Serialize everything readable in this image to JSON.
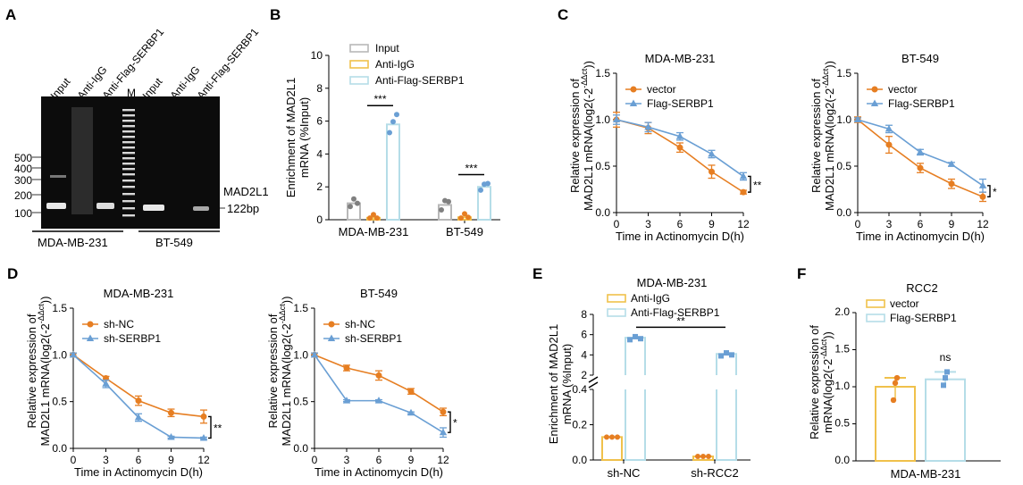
{
  "colors": {
    "orange": "#e67e22",
    "blue": "#6a9fd4",
    "lightblue": "#b5dde8",
    "gray": "#b8b8b8",
    "yellow": "#f0c14b",
    "darkgray": "#808080"
  },
  "panel_a": {
    "letter": "A",
    "lanes": [
      "Input",
      "Anti-IgG",
      "Anti-Flag-SERBP1",
      "M",
      "Input",
      "Anti-IgG",
      "Anti-Flag-SERBP1"
    ],
    "ladder_labels": [
      "500",
      "400",
      "300",
      "200",
      "100"
    ],
    "band_label_line1": "MAD2L1",
    "band_label_line2": "122bp",
    "groups": [
      "MDA-MB-231",
      "BT-549"
    ]
  },
  "chart_data": [
    {
      "id": "B",
      "type": "bar",
      "panel": "B",
      "ylabel": "Enrichment of MAD2L1 mRNA (%Input)",
      "ylabel_line1": "Enrichment of MAD2L1",
      "ylabel_line2": "mRNA (%Input)",
      "ylim": [
        0,
        10
      ],
      "yticks": [
        "0",
        "2",
        "4",
        "6",
        "8",
        "10"
      ],
      "categories": [
        "MDA-MB-231",
        "BT-549"
      ],
      "series": [
        {
          "name": "Input",
          "values": [
            1.0,
            0.9
          ],
          "points": [
            [
              0.8,
              1.1,
              1.0
            ],
            [
              0.6,
              1.0,
              1.1
            ]
          ]
        },
        {
          "name": "Anti-IgG",
          "values": [
            0.12,
            0.15
          ],
          "points": [
            [
              0.1,
              0.15,
              0.1
            ],
            [
              0.1,
              0.2,
              0.15
            ]
          ]
        },
        {
          "name": "Anti-Flag-SERBP1",
          "values": [
            5.8,
            2.0
          ],
          "points": [
            [
              5.3,
              5.8,
              6.4
            ],
            [
              1.8,
              2.0,
              2.2
            ]
          ]
        }
      ],
      "significance": [
        "***",
        "***"
      ]
    },
    {
      "id": "C1",
      "type": "line",
      "panel": "C",
      "title": "MDA-MB-231",
      "xlabel": "Time in Actinomycin D(h)",
      "ylabel_line1": "Relative expression of",
      "ylabel_line2": "MAD2L1 mRNA(log2(-2",
      "ylabel_sup": "-ΔΔct",
      "ylabel_close": "))",
      "x": [
        0,
        3,
        6,
        9,
        12
      ],
      "xticks": [
        "0",
        "3",
        "6",
        "9",
        "12"
      ],
      "ylim": [
        0,
        1.5
      ],
      "yticks": [
        "0.0",
        "0.5",
        "1.0",
        "1.5"
      ],
      "series": [
        {
          "name": "vector",
          "values": [
            1.0,
            0.91,
            0.7,
            0.44,
            0.22
          ],
          "errors": [
            0.08,
            0.06,
            0.05,
            0.07,
            0.02
          ]
        },
        {
          "name": "Flag-SERBP1",
          "values": [
            1.0,
            0.92,
            0.82,
            0.63,
            0.39
          ],
          "errors": [
            0.05,
            0.05,
            0.04,
            0.04,
            0.04
          ]
        }
      ],
      "significance": "**"
    },
    {
      "id": "C2",
      "type": "line",
      "panel": "C",
      "title": "BT-549",
      "xlabel": "Time in Actinomycin D(h)",
      "ylabel_line1": "Relative expression of",
      "ylabel_line2": "MAD2L1 mRNA(log2(-2",
      "ylabel_sup": "-ΔΔct",
      "ylabel_close": "))",
      "x": [
        0,
        3,
        6,
        9,
        12
      ],
      "xticks": [
        "0",
        "3",
        "6",
        "9",
        "12"
      ],
      "ylim": [
        0,
        1.5
      ],
      "yticks": [
        "0.0",
        "0.5",
        "1.0",
        "1.5"
      ],
      "series": [
        {
          "name": "vector",
          "values": [
            1.0,
            0.73,
            0.48,
            0.31,
            0.17
          ],
          "errors": [
            0.03,
            0.09,
            0.05,
            0.05,
            0.05
          ]
        },
        {
          "name": "Flag-SERBP1",
          "values": [
            1.0,
            0.9,
            0.65,
            0.52,
            0.29
          ],
          "errors": [
            0.02,
            0.04,
            0.03,
            0.02,
            0.07
          ]
        }
      ],
      "significance": "*"
    },
    {
      "id": "D1",
      "type": "line",
      "panel": "D",
      "title": "MDA-MB-231",
      "xlabel": "Time in Actinomycin D(h)",
      "ylabel_line1": "Relative expression of",
      "ylabel_line2": "MAD2L1 mRNA(log2(-2",
      "ylabel_sup": "-ΔΔct",
      "ylabel_close": "))",
      "x": [
        0,
        3,
        6,
        9,
        12
      ],
      "xticks": [
        "0",
        "3",
        "6",
        "9",
        "12"
      ],
      "ylim": [
        0,
        1.5
      ],
      "yticks": [
        "0.0",
        "0.5",
        "1.0",
        "1.5"
      ],
      "series": [
        {
          "name": "sh-NC",
          "values": [
            1.0,
            0.75,
            0.51,
            0.38,
            0.34
          ],
          "errors": [
            0.02,
            0.02,
            0.05,
            0.04,
            0.07
          ]
        },
        {
          "name": "sh-SERBP1",
          "values": [
            1.0,
            0.69,
            0.33,
            0.12,
            0.11
          ],
          "errors": [
            0.02,
            0.04,
            0.04,
            0.01,
            0.01
          ]
        }
      ],
      "significance": "**"
    },
    {
      "id": "D2",
      "type": "line",
      "panel": "D",
      "title": "BT-549",
      "xlabel": "Time in Actinomycin D(h)",
      "ylabel_line1": "Relative expression of",
      "ylabel_line2": "MAD2L1 mRNA(log2(-2",
      "ylabel_sup": "-ΔΔct",
      "ylabel_close": "))",
      "x": [
        0,
        3,
        6,
        9,
        12
      ],
      "xticks": [
        "0",
        "3",
        "6",
        "9",
        "12"
      ],
      "ylim": [
        0,
        1.5
      ],
      "yticks": [
        "0.0",
        "0.5",
        "1.0",
        "1.5"
      ],
      "series": [
        {
          "name": "sh-NC",
          "values": [
            1.0,
            0.86,
            0.78,
            0.61,
            0.39
          ],
          "errors": [
            0.02,
            0.03,
            0.05,
            0.03,
            0.04
          ]
        },
        {
          "name": "sh-SERBP1",
          "values": [
            1.0,
            0.51,
            0.51,
            0.38,
            0.17
          ],
          "errors": [
            0.02,
            0.01,
            0.01,
            0.01,
            0.05
          ]
        }
      ],
      "significance": "*"
    },
    {
      "id": "E",
      "type": "bar",
      "panel": "E",
      "title": "MDA-MB-231",
      "ylabel_line1": "Enrichment of MAD2L1",
      "ylabel_line2": "mRNA (%Input)",
      "categories": [
        "sh-NC",
        "sh-RCC2"
      ],
      "axis_break": {
        "lower": [
          0,
          0.4
        ],
        "upper": [
          2,
          8
        ]
      },
      "yticks_lower": [
        "0.0",
        "0.2",
        "0.4"
      ],
      "yticks_upper": [
        "2",
        "4",
        "6",
        "8"
      ],
      "series": [
        {
          "name": "Anti-IgG",
          "values": [
            0.13,
            0.02
          ],
          "points": [
            [
              0.13,
              0.13,
              0.13
            ],
            [
              0.02,
              0.02,
              0.02
            ]
          ]
        },
        {
          "name": "Anti-Flag-SERBP1",
          "values": [
            5.7,
            4.1
          ],
          "points": [
            [
              5.5,
              5.8,
              5.6
            ],
            [
              3.9,
              4.2,
              4.0
            ]
          ]
        }
      ],
      "significance": "**"
    },
    {
      "id": "F",
      "type": "bar",
      "panel": "F",
      "title": "RCC2",
      "ylabel_line1": "Relative expression of",
      "ylabel_line2": "mRNA(log2(-2",
      "ylabel_sup": "-ΔΔct",
      "ylabel_close": "))",
      "categories": [
        "MDA-MB-231"
      ],
      "ylim": [
        0,
        2.0
      ],
      "yticks": [
        "0.0",
        "0.5",
        "1.0",
        "1.5",
        "2.0"
      ],
      "series": [
        {
          "name": "vector",
          "values": [
            1.0
          ],
          "points": [
            [
              0.82,
              1.05,
              1.12
            ]
          ]
        },
        {
          "name": "Flag-SERBP1",
          "values": [
            1.1
          ],
          "points": [
            [
              1.02,
              1.12,
              1.2
            ]
          ]
        }
      ],
      "significance": "ns"
    }
  ]
}
